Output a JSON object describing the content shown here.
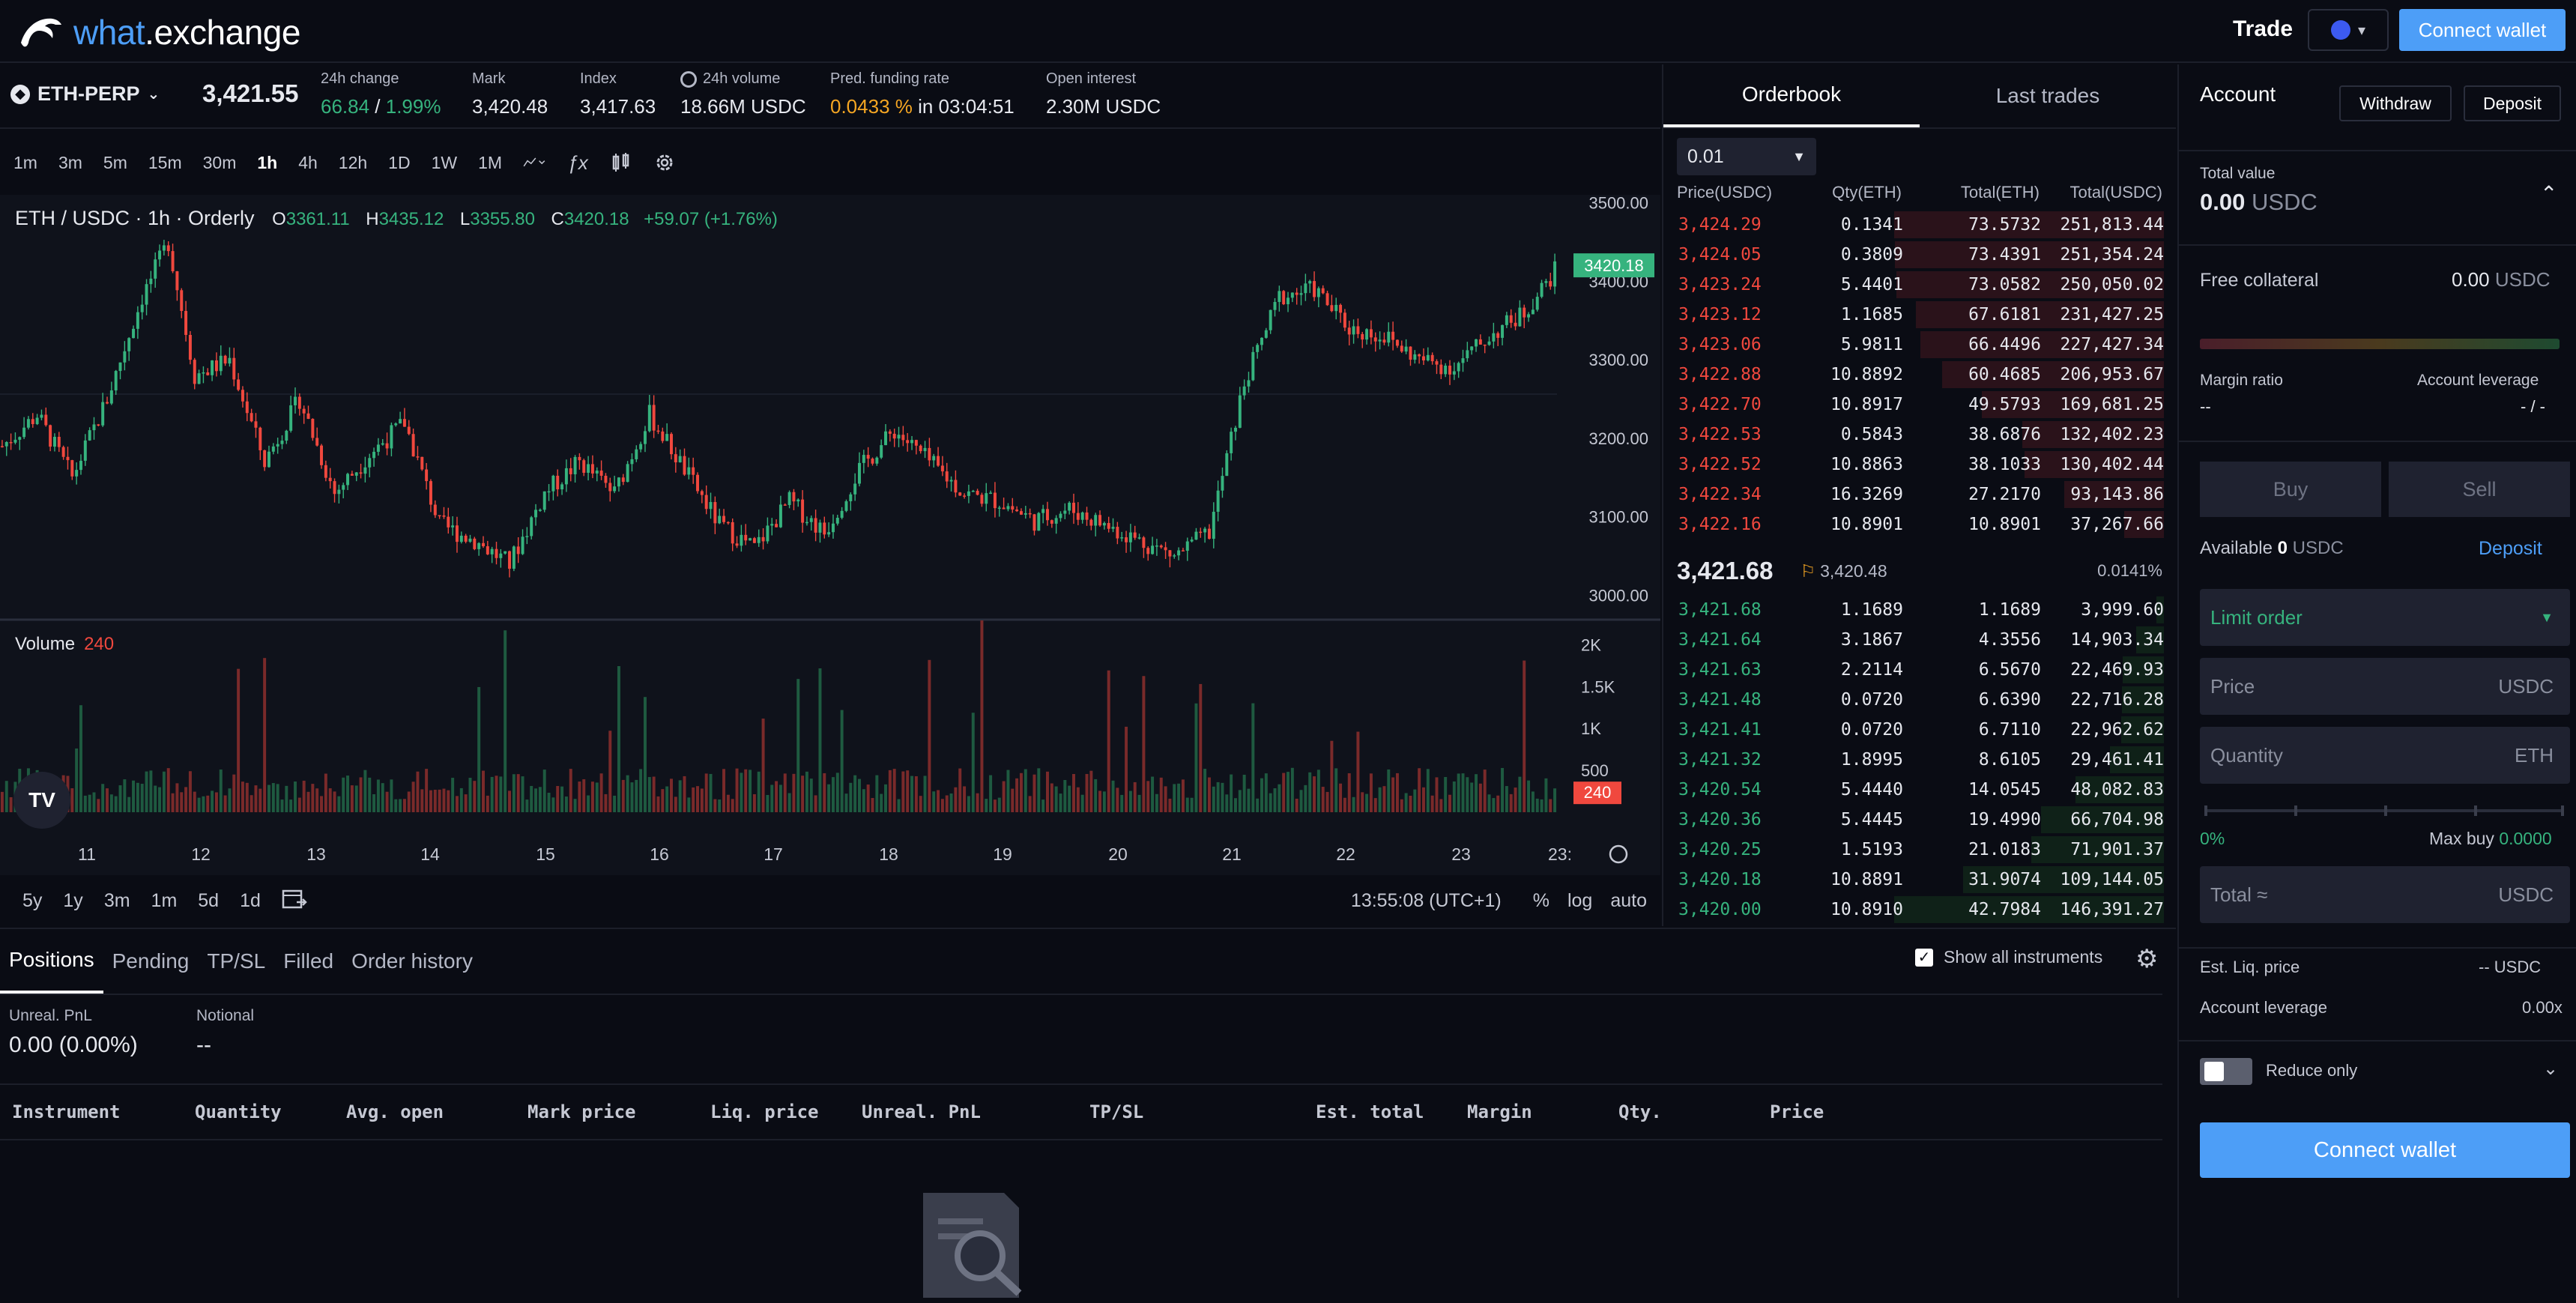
{
  "brand": {
    "name_part1": "what",
    "name_part2": ".exchange"
  },
  "topbar": {
    "trade_label": "Trade",
    "connect_label": "Connect wallet"
  },
  "ticker": {
    "symbol": "ETH-PERP",
    "last_price": "3,421.55",
    "stats": [
      {
        "label": "24h change",
        "value_a": "66.84",
        "sep": " / ",
        "value_b": "1.99%"
      },
      {
        "label": "Mark",
        "value": "3,420.48"
      },
      {
        "label": "Index",
        "value": "3,417.63"
      },
      {
        "label": "24h volume",
        "value": "18.66M USDC"
      },
      {
        "label": "Pred. funding rate",
        "rate": "0.0433 %",
        "in": " in 03:04:51"
      },
      {
        "label": "Open interest",
        "value": "2.30M USDC"
      }
    ]
  },
  "chart_toolbar": {
    "intervals": [
      "1m",
      "3m",
      "5m",
      "15m",
      "30m",
      "1h",
      "4h",
      "12h",
      "1D",
      "1W",
      "1M"
    ],
    "active": "1h"
  },
  "chart_legend": {
    "title": "ETH / USDC · 1h · Orderly",
    "o_label": "O",
    "o": "3361.11",
    "h_label": "H",
    "h": "3435.12",
    "l_label": "L",
    "l": "3355.80",
    "c_label": "C",
    "c": "3420.18",
    "change": "+59.07 (+1.76%)"
  },
  "volume_legend": {
    "label": "Volume",
    "value": "240"
  },
  "chart_data": {
    "type": "candlestick",
    "title": "ETH / USDC · 1h · Orderly",
    "price_ticks": [
      "3500.00",
      "3400.00",
      "3300.00",
      "3200.00",
      "3100.00",
      "3000.00"
    ],
    "price_range": [
      2970,
      3510
    ],
    "volume_ticks": [
      "2K",
      "1.5K",
      "1K",
      "500"
    ],
    "volume_range": [
      0,
      2200
    ],
    "x_ticks": [
      "11",
      "12",
      "13",
      "14",
      "15",
      "16",
      "17",
      "18",
      "19",
      "20",
      "21",
      "22",
      "23",
      "23:"
    ],
    "last_price_label": "3420.18",
    "last_volume_label": "240",
    "close_path": [
      [
        0,
        3190
      ],
      [
        8,
        3230
      ],
      [
        16,
        3150
      ],
      [
        24,
        3250
      ],
      [
        32,
        3380
      ],
      [
        38,
        3450
      ],
      [
        44,
        3280
      ],
      [
        52,
        3300
      ],
      [
        60,
        3170
      ],
      [
        68,
        3250
      ],
      [
        76,
        3130
      ],
      [
        84,
        3180
      ],
      [
        92,
        3220
      ],
      [
        100,
        3090
      ],
      [
        108,
        3070
      ],
      [
        116,
        3040
      ],
      [
        124,
        3130
      ],
      [
        132,
        3170
      ],
      [
        140,
        3130
      ],
      [
        148,
        3230
      ],
      [
        156,
        3160
      ],
      [
        164,
        3090
      ],
      [
        172,
        3060
      ],
      [
        180,
        3120
      ],
      [
        188,
        3080
      ],
      [
        196,
        3160
      ],
      [
        204,
        3210
      ],
      [
        212,
        3170
      ],
      [
        220,
        3130
      ],
      [
        228,
        3120
      ],
      [
        236,
        3095
      ],
      [
        244,
        3110
      ],
      [
        252,
        3090
      ],
      [
        260,
        3070
      ],
      [
        268,
        3050
      ],
      [
        276,
        3080
      ],
      [
        284,
        3270
      ],
      [
        292,
        3380
      ],
      [
        300,
        3390
      ],
      [
        308,
        3340
      ],
      [
        316,
        3330
      ],
      [
        324,
        3300
      ],
      [
        332,
        3290
      ],
      [
        340,
        3330
      ],
      [
        348,
        3360
      ],
      [
        356,
        3420
      ]
    ],
    "candle_count": 356
  },
  "range_bar": {
    "ranges": [
      "5y",
      "1y",
      "3m",
      "1m",
      "5d",
      "1d"
    ],
    "time": "13:55:08 (UTC+1)",
    "opts": [
      "%",
      "log",
      "auto"
    ]
  },
  "orderbook": {
    "tabs": [
      "Orderbook",
      "Last trades"
    ],
    "step": "0.01",
    "headers": [
      "Price(USDC)",
      "Qty(ETH)",
      "Total(ETH)",
      "Total(USDC)"
    ],
    "asks": [
      {
        "price": "3,424.29",
        "qty": "0.1341",
        "total": "73.5732",
        "total_usdc": "251,813.44",
        "depth": 1.0
      },
      {
        "price": "3,424.05",
        "qty": "0.3809",
        "total": "73.4391",
        "total_usdc": "251,354.24",
        "depth": 0.998
      },
      {
        "price": "3,423.24",
        "qty": "5.4401",
        "total": "73.0582",
        "total_usdc": "250,050.02",
        "depth": 0.993
      },
      {
        "price": "3,423.12",
        "qty": "1.1685",
        "total": "67.6181",
        "total_usdc": "231,427.25",
        "depth": 0.919
      },
      {
        "price": "3,423.06",
        "qty": "5.9811",
        "total": "66.4496",
        "total_usdc": "227,427.34",
        "depth": 0.903
      },
      {
        "price": "3,422.88",
        "qty": "10.8892",
        "total": "60.4685",
        "total_usdc": "206,953.67",
        "depth": 0.822
      },
      {
        "price": "3,422.70",
        "qty": "10.8917",
        "total": "49.5793",
        "total_usdc": "169,681.25",
        "depth": 0.674
      },
      {
        "price": "3,422.53",
        "qty": "0.5843",
        "total": "38.6876",
        "total_usdc": "132,402.23",
        "depth": 0.526
      },
      {
        "price": "3,422.52",
        "qty": "10.8863",
        "total": "38.1033",
        "total_usdc": "130,402.44",
        "depth": 0.518
      },
      {
        "price": "3,422.34",
        "qty": "16.3269",
        "total": "27.2170",
        "total_usdc": "93,143.86",
        "depth": 0.37
      },
      {
        "price": "3,422.16",
        "qty": "10.8901",
        "total": "10.8901",
        "total_usdc": "37,267.66",
        "depth": 0.148
      }
    ],
    "mid_price": "3,421.68",
    "index_price": "3,420.48",
    "spread": "0.0141%",
    "bids": [
      {
        "price": "3,421.68",
        "qty": "1.1689",
        "total": "1.1689",
        "total_usdc": "3,999.60",
        "depth": 0.027
      },
      {
        "price": "3,421.64",
        "qty": "3.1867",
        "total": "4.3556",
        "total_usdc": "14,903.34",
        "depth": 0.102
      },
      {
        "price": "3,421.63",
        "qty": "2.2114",
        "total": "6.5670",
        "total_usdc": "22,469.93",
        "depth": 0.153
      },
      {
        "price": "3,421.48",
        "qty": "0.0720",
        "total": "6.6390",
        "total_usdc": "22,716.28",
        "depth": 0.155
      },
      {
        "price": "3,421.41",
        "qty": "0.0720",
        "total": "6.7110",
        "total_usdc": "22,962.62",
        "depth": 0.157
      },
      {
        "price": "3,421.32",
        "qty": "1.8995",
        "total": "8.6105",
        "total_usdc": "29,461.41",
        "depth": 0.201
      },
      {
        "price": "3,420.54",
        "qty": "5.4440",
        "total": "14.0545",
        "total_usdc": "48,082.83",
        "depth": 0.328
      },
      {
        "price": "3,420.36",
        "qty": "5.4445",
        "total": "19.4990",
        "total_usdc": "66,704.98",
        "depth": 0.455
      },
      {
        "price": "3,420.25",
        "qty": "1.5193",
        "total": "21.0183",
        "total_usdc": "71,901.37",
        "depth": 0.491
      },
      {
        "price": "3,420.18",
        "qty": "10.8891",
        "total": "31.9074",
        "total_usdc": "109,144.05",
        "depth": 0.745
      },
      {
        "price": "3,420.00",
        "qty": "10.8910",
        "total": "42.7984",
        "total_usdc": "146,391.27",
        "depth": 1.0
      }
    ]
  },
  "positions": {
    "tabs": [
      "Positions",
      "Pending",
      "TP/SL",
      "Filled",
      "Order history"
    ],
    "show_all": "Show all instruments",
    "unreal_label": "Unreal. PnL",
    "unreal_value": "0.00 (0.00%)",
    "notional_label": "Notional",
    "notional_value": "--",
    "columns": [
      "Instrument",
      "Quantity",
      "Avg. open",
      "Mark price",
      "Liq. price",
      "Unreal. PnL",
      "TP/SL",
      "Est. total",
      "Margin",
      "Qty.",
      "Price"
    ]
  },
  "account": {
    "title": "Account",
    "withdraw": "Withdraw",
    "deposit": "Deposit",
    "total_value_label": "Total value",
    "total_value": "0.00",
    "unit": "USDC",
    "free_collateral_label": "Free collateral",
    "free_collateral": "0.00",
    "margin_ratio_label": "Margin ratio",
    "margin_ratio": "--",
    "account_leverage_label": "Account leverage",
    "account_leverage": "- / -",
    "buy": "Buy",
    "sell": "Sell",
    "available_label": "Available",
    "available_value": "0",
    "deposit_link": "Deposit",
    "order_type": "Limit order",
    "price_placeholder": "Price",
    "quantity_placeholder": "Quantity",
    "quantity_unit": "ETH",
    "slider_pct": "0%",
    "max_buy_label": "Max buy",
    "max_buy_value": "0.0000",
    "total_placeholder": "Total ≈",
    "est_liq_label": "Est. Liq. price",
    "est_liq_value": "-- USDC",
    "acc_lev2_label": "Account leverage",
    "acc_lev2_value": "0.00x",
    "reduce_only": "Reduce only",
    "connect": "Connect wallet"
  }
}
